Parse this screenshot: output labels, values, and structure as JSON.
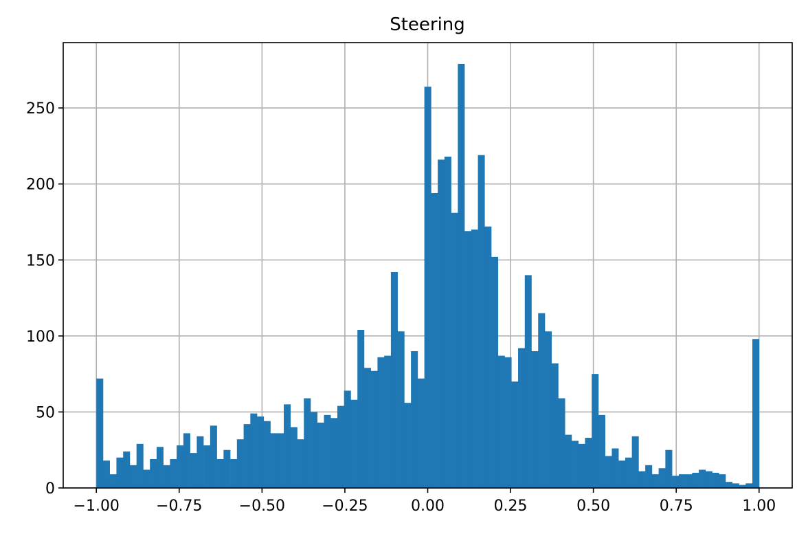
{
  "chart_data": {
    "type": "bar",
    "title": "Steering",
    "xlabel": "",
    "ylabel": "",
    "xlim": [
      -1.1,
      1.1
    ],
    "ylim": [
      0,
      293
    ],
    "grid": true,
    "color": "#1f77b4",
    "xticks": [
      -1.0,
      -0.75,
      -0.5,
      -0.25,
      0.0,
      0.25,
      0.5,
      0.75,
      1.0
    ],
    "xtick_labels": [
      "−1.00",
      "−0.75",
      "−0.50",
      "−0.25",
      "0.00",
      "0.25",
      "0.50",
      "0.75",
      "1.00"
    ],
    "yticks": [
      0,
      50,
      100,
      150,
      200,
      250
    ],
    "ytick_labels": [
      "0",
      "50",
      "100",
      "150",
      "200",
      "250"
    ],
    "bin_start": -1.0,
    "bin_end": 1.0,
    "values": [
      72,
      18,
      9,
      20,
      24,
      15,
      29,
      12,
      19,
      27,
      15,
      19,
      28,
      36,
      23,
      34,
      28,
      41,
      19,
      25,
      19,
      32,
      42,
      49,
      47,
      44,
      36,
      36,
      55,
      40,
      32,
      59,
      50,
      43,
      48,
      46,
      54,
      64,
      58,
      104,
      79,
      77,
      86,
      87,
      142,
      103,
      56,
      90,
      72,
      264,
      194,
      216,
      218,
      181,
      279,
      169,
      170,
      219,
      172,
      152,
      87,
      86,
      70,
      92,
      140,
      90,
      115,
      103,
      82,
      59,
      35,
      31,
      29,
      33,
      75,
      48,
      21,
      26,
      18,
      20,
      34,
      11,
      15,
      9,
      13,
      25,
      8,
      9,
      9,
      10,
      12,
      11,
      10,
      9,
      4,
      3,
      2,
      3,
      98
    ]
  }
}
